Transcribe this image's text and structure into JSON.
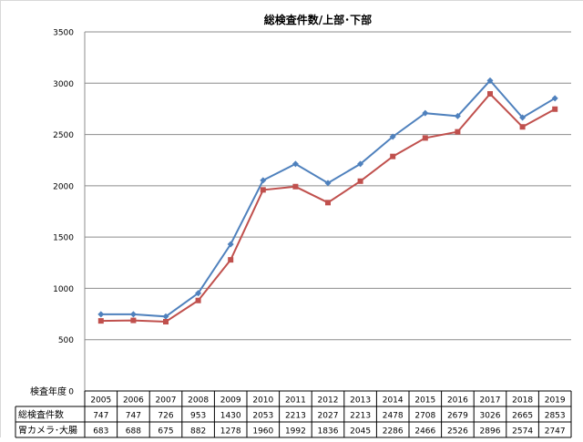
{
  "chart_data": {
    "type": "line",
    "title": "総検査件数/上部･下部",
    "xlabel": "検査年度",
    "ylabel": "",
    "categories": [
      "2005",
      "2006",
      "2007",
      "2008",
      "2009",
      "2010",
      "2011",
      "2012",
      "2013",
      "2014",
      "2015",
      "2016",
      "2017",
      "2018",
      "2019"
    ],
    "ylim": [
      0,
      3500
    ],
    "yticks": [
      0,
      500,
      1000,
      1500,
      2000,
      2500,
      3000,
      3500
    ],
    "grid": true,
    "legend": "data-table",
    "series": [
      {
        "name": "総検査件数",
        "color": "#4f81bd",
        "marker": "diamond",
        "values": [
          747,
          747,
          726,
          953,
          1430,
          2053,
          2213,
          2027,
          2213,
          2478,
          2708,
          2679,
          3026,
          2665,
          2853
        ]
      },
      {
        "name": "胃カメラ･大腸",
        "color": "#c0504d",
        "marker": "square",
        "values": [
          683,
          688,
          675,
          882,
          1278,
          1960,
          1992,
          1836,
          2045,
          2286,
          2466,
          2526,
          2896,
          2574,
          2747
        ]
      }
    ]
  }
}
